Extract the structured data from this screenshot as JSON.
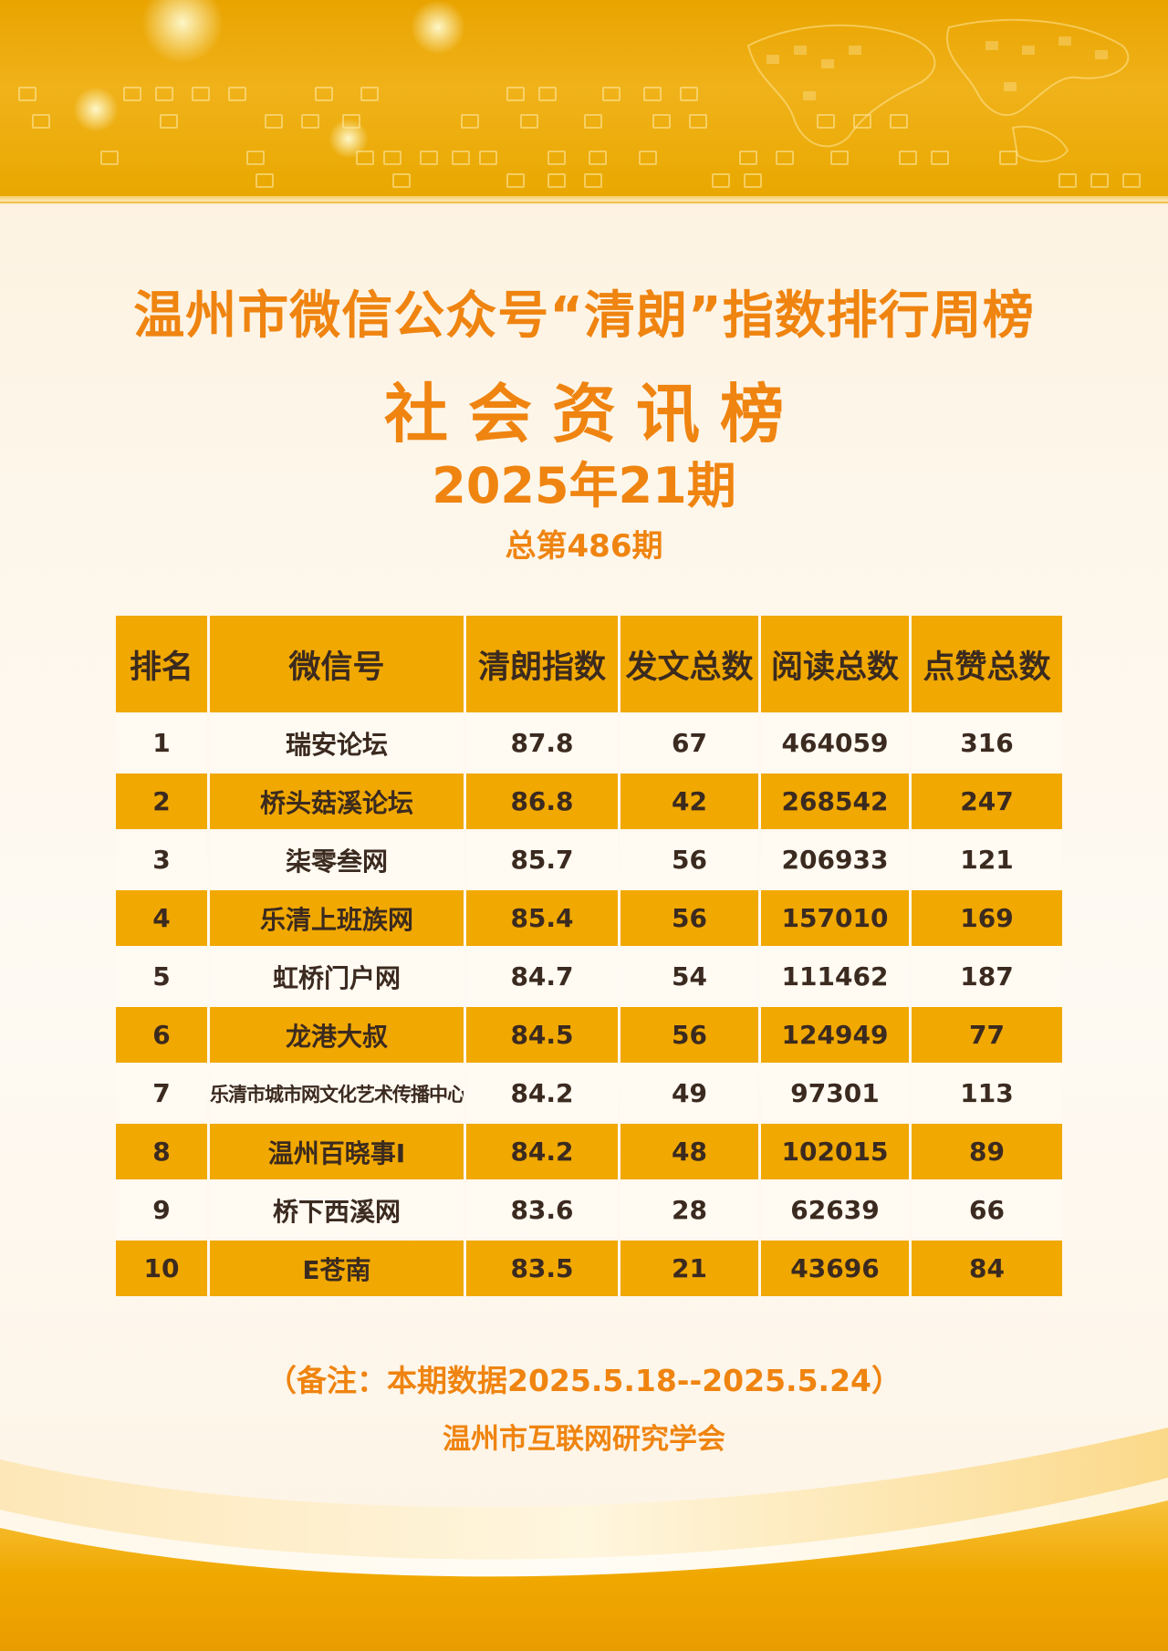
{
  "title": "温州市微信公众号“清朗”指数排行周榜",
  "subtitle": "社会资讯榜",
  "issue": "2025年21期",
  "total_issue": "总第486期",
  "table": {
    "headers": [
      "排名",
      "微信号",
      "清朗指数",
      "发文总数",
      "阅读总数",
      "点赞总数"
    ],
    "rows": [
      [
        "1",
        "瑞安论坛",
        "87.8",
        "67",
        "464059",
        "316"
      ],
      [
        "2",
        "桥头菇溪论坛",
        "86.8",
        "42",
        "268542",
        "247"
      ],
      [
        "3",
        "柒零叁网",
        "85.7",
        "56",
        "206933",
        "121"
      ],
      [
        "4",
        "乐清上班族网",
        "85.4",
        "56",
        "157010",
        "169"
      ],
      [
        "5",
        "虹桥门户网",
        "84.7",
        "54",
        "111462",
        "187"
      ],
      [
        "6",
        "龙港大叔",
        "84.5",
        "56",
        "124949",
        "77"
      ],
      [
        "7",
        "乐清市城市网文化艺术传播中心",
        "84.2",
        "49",
        "97301",
        "113"
      ],
      [
        "8",
        "温州百晓事I",
        "84.2",
        "48",
        "102015",
        "89"
      ],
      [
        "9",
        "桥下西溪网",
        "83.6",
        "28",
        "62639",
        "66"
      ],
      [
        "10",
        "E苍南",
        "83.5",
        "21",
        "43696",
        "84"
      ]
    ]
  },
  "note": "（备注：本期数据2025.5.18--2025.5.24）",
  "organization": "温州市互联网研究学会",
  "colors": {
    "accent_text": "#ef8410",
    "table_gold": "#f1a800",
    "table_light": "#fffaf2",
    "banner_gold": "#e9a400"
  }
}
